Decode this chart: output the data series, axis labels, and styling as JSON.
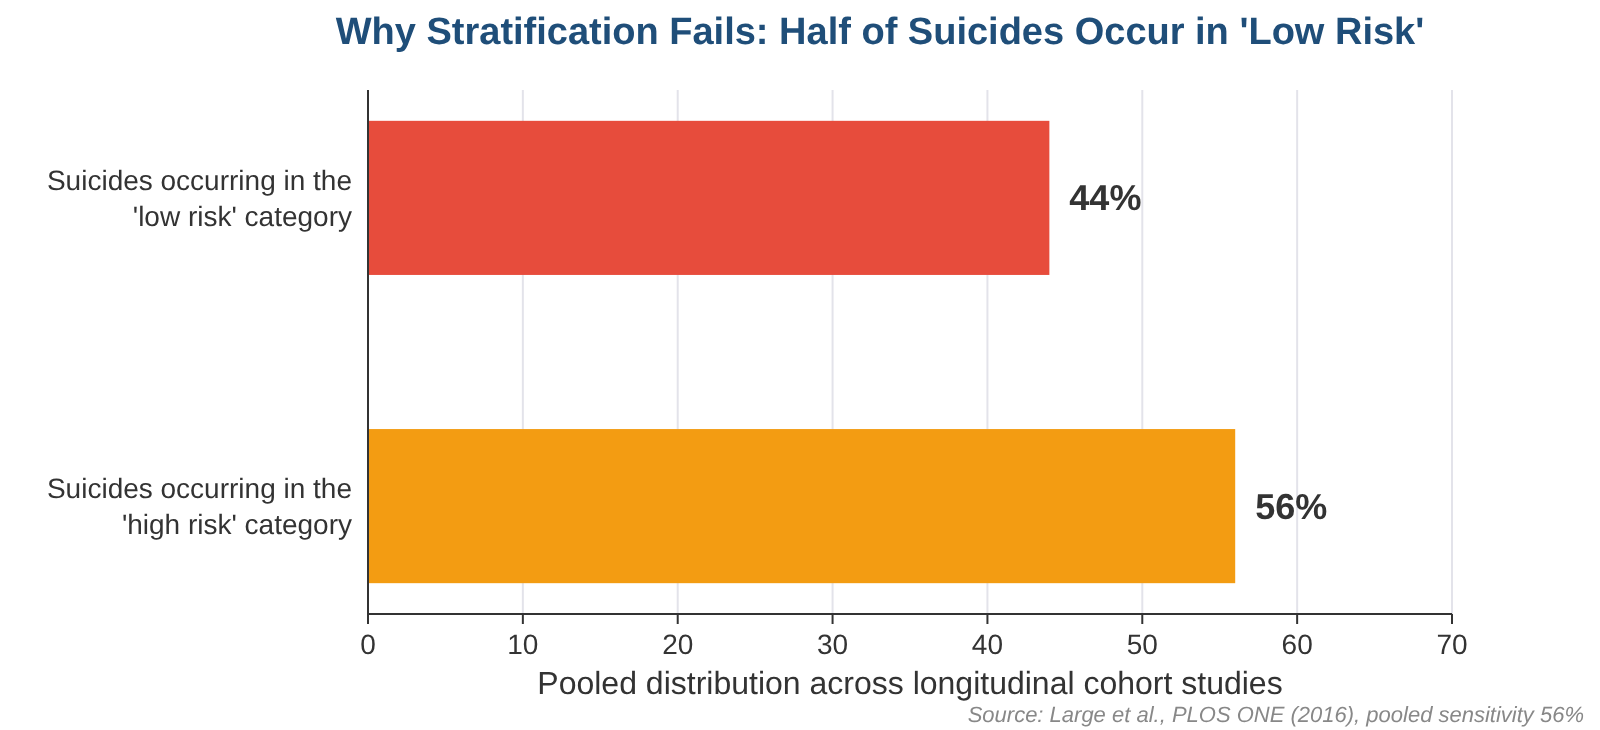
{
  "chart_data": {
    "type": "bar",
    "orientation": "horizontal",
    "title": "Why Stratification Fails: Half of Suicides Occur in 'Low Risk'",
    "xlabel": "Pooled distribution across longitudinal cohort studies",
    "categories": [
      "Suicides occurring in the 'low risk' category",
      "Suicides occurring in the 'high risk' category"
    ],
    "values": [
      44,
      56
    ],
    "colors": [
      "#e74c3c",
      "#f39c12"
    ],
    "value_labels": [
      "44%",
      "56%"
    ],
    "xlim": [
      0,
      70
    ],
    "xticks": [
      0,
      10,
      20,
      30,
      40,
      50,
      60,
      70
    ],
    "grid": "x",
    "annotations": [
      "Source: Large et al., PLOS ONE (2016), pooled sensitivity 56%"
    ]
  }
}
